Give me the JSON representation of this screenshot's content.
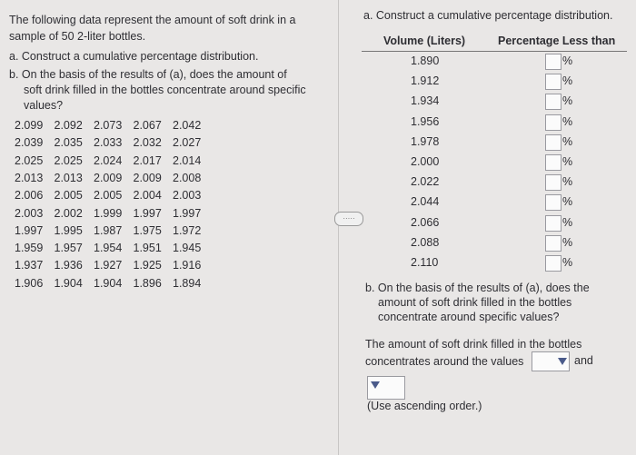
{
  "question": {
    "intro_lines": [
      "The following data represent the amount of soft drink in a",
      "sample of 50 2-liter bottles."
    ],
    "part_a_lines": [
      "a. Construct a cumulative percentage distribution."
    ],
    "part_b_lines": [
      "b. On the basis of the results of (a), does the amount of",
      "soft drink filled in the bottles concentrate around specific",
      "values?"
    ],
    "data_rows": [
      [
        "2.099",
        "2.092",
        "2.073",
        "2.067",
        "2.042"
      ],
      [
        "2.039",
        "2.035",
        "2.033",
        "2.032",
        "2.027"
      ],
      [
        "2.025",
        "2.025",
        "2.024",
        "2.017",
        "2.014"
      ],
      [
        "2.013",
        "2.013",
        "2.009",
        "2.009",
        "2.008"
      ],
      [
        "2.006",
        "2.005",
        "2.005",
        "2.004",
        "2.003"
      ],
      [
        "2.003",
        "2.002",
        "1.999",
        "1.997",
        "1.997"
      ],
      [
        "1.997",
        "1.995",
        "1.987",
        "1.975",
        "1.972"
      ],
      [
        "1.959",
        "1.957",
        "1.954",
        "1.951",
        "1.945"
      ],
      [
        "1.937",
        "1.936",
        "1.927",
        "1.925",
        "1.916"
      ],
      [
        "1.906",
        "1.904",
        "1.904",
        "1.896",
        "1.894"
      ]
    ]
  },
  "answer": {
    "part_a_title": "a. Construct a cumulative percentage distribution.",
    "table": {
      "headers": [
        "Volume (Liters)",
        "Percentage Less than"
      ],
      "volumes": [
        "1.890",
        "1.912",
        "1.934",
        "1.956",
        "1.978",
        "2.000",
        "2.022",
        "2.044",
        "2.066",
        "2.088",
        "2.110"
      ],
      "unit": "%"
    },
    "part_b_lines": [
      "b. On the basis of the results of (a), does the",
      "amount of soft drink filled in the bottles",
      "concentrate around specific values?"
    ],
    "sentence_lines": [
      "The amount of soft drink filled in the bottles",
      "concentrates around the values"
    ],
    "conjunction": "and",
    "hint": "(Use ascending order.)"
  }
}
